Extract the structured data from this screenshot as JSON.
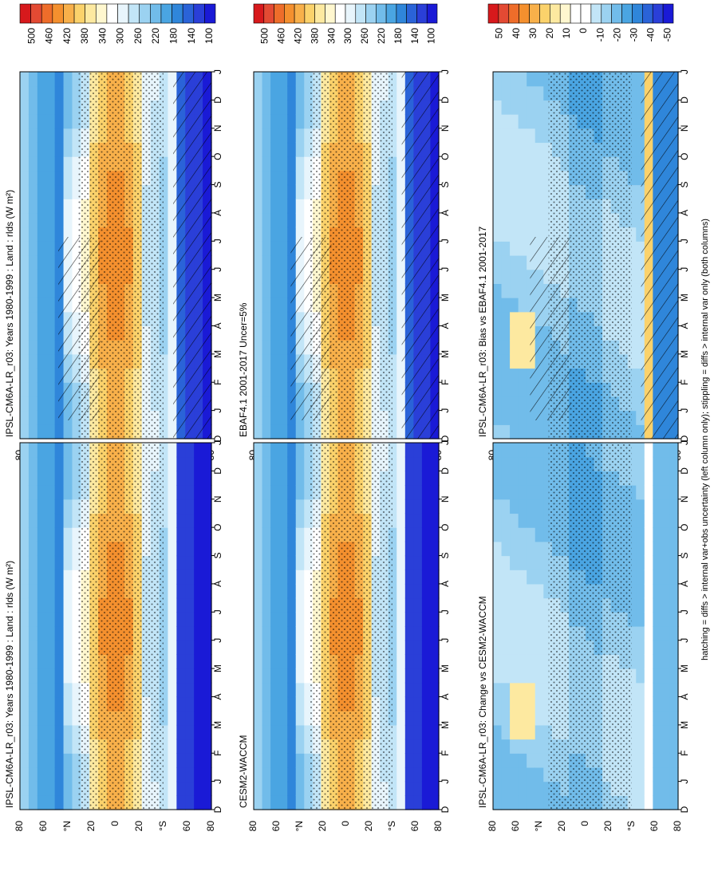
{
  "figure": {
    "footnote": "hatching = diffs > internal var+obs uncertainty (left column only); stippling = diffs > internal var only (both columns)"
  },
  "colors": {
    "absolute_scale": [
      "#d7191c",
      "#e34a33",
      "#ee6d2a",
      "#f4902e",
      "#f8b04a",
      "#fbd26b",
      "#fde9a0",
      "#fff7cf",
      "#ffffff",
      "#e8f5fc",
      "#c2e5f7",
      "#9bd2f1",
      "#71bcea",
      "#4aa5e2",
      "#2f86da",
      "#2a63d8",
      "#2a3fd8",
      "#1a1ad6"
    ],
    "difference_scale": [
      "#d7191c",
      "#e34a33",
      "#ee6d2a",
      "#f4902e",
      "#f8b04a",
      "#fbd26b",
      "#fde9a0",
      "#fff7cf",
      "#ffffff",
      "#ffffff",
      "#c2e5f7",
      "#9bd2f1",
      "#71bcea",
      "#4aa5e2",
      "#2f86da",
      "#2a63d8",
      "#2a3fd8",
      "#1a1ad6"
    ],
    "stipple": "#000000"
  },
  "chart_data": [
    {
      "type": "heatmap",
      "title": "IPSL-CM6A-LR_r03: Years 1980-1999 : Land : rlds (W m²)",
      "x_tick_labels": [
        "D",
        "J",
        "F",
        "M",
        "A",
        "M",
        "J",
        "J",
        "A",
        "S",
        "O",
        "N",
        "D",
        "J"
      ],
      "y_tick_labels": [
        "80",
        "60",
        "°N",
        "20",
        "0",
        "20",
        "°S",
        "60",
        "80"
      ],
      "colorbar_labels": [
        "500",
        "460",
        "420",
        "380",
        "340",
        "300",
        "260",
        "220",
        "180",
        "140",
        "100"
      ],
      "hatching": true,
      "stippling": true
    },
    {
      "type": "heatmap",
      "title": "IPSL-CM6A-LR_r03: Years 1980-1999 : Land : rlds (W m²)",
      "x_tick_labels": [
        "D",
        "J",
        "F",
        "M",
        "A",
        "M",
        "J",
        "J",
        "A",
        "S",
        "O",
        "N",
        "D",
        "J"
      ],
      "y_tick_labels": [
        "80",
        "60",
        "°N",
        "20",
        "0",
        "20",
        "°S",
        "60",
        "80"
      ],
      "colorbar_labels": [
        "500",
        "460",
        "420",
        "380",
        "340",
        "300",
        "260",
        "220",
        "180",
        "140",
        "100"
      ],
      "hatching": false,
      "stippling": true
    },
    {
      "type": "heatmap",
      "title": "EBAF4.1 2001-2017 Uncer=5%",
      "x_tick_labels": [
        "D",
        "J",
        "F",
        "M",
        "A",
        "M",
        "J",
        "J",
        "A",
        "S",
        "O",
        "N",
        "D",
        "J"
      ],
      "y_tick_labels": [
        "80",
        "60",
        "°N",
        "20",
        "0",
        "20",
        "°S",
        "60",
        "80"
      ],
      "colorbar_labels": [
        "500",
        "460",
        "420",
        "380",
        "340",
        "300",
        "260",
        "220",
        "180",
        "140",
        "100"
      ],
      "hatching": true,
      "stippling": true
    },
    {
      "type": "heatmap",
      "title": "CESM2-WACCM",
      "x_tick_labels": [
        "D",
        "J",
        "F",
        "M",
        "A",
        "M",
        "J",
        "J",
        "A",
        "S",
        "O",
        "N",
        "D",
        "J"
      ],
      "y_tick_labels": [
        "80",
        "60",
        "°N",
        "20",
        "0",
        "20",
        "°S",
        "60",
        "80"
      ],
      "colorbar_labels": [
        "500",
        "460",
        "420",
        "380",
        "340",
        "300",
        "260",
        "220",
        "180",
        "140",
        "100"
      ],
      "hatching": false,
      "stippling": true
    },
    {
      "type": "heatmap",
      "title": "IPSL-CM6A-LR_r03: Bias vs EBAF4.1 2001-2017",
      "x_tick_labels": [
        "D",
        "J",
        "F",
        "M",
        "A",
        "M",
        "J",
        "J",
        "A",
        "S",
        "O",
        "N",
        "D",
        "J"
      ],
      "y_tick_labels": [
        "80",
        "60",
        "°N",
        "20",
        "0",
        "20",
        "°S",
        "60",
        "80"
      ],
      "colorbar_labels": [
        "50",
        "40",
        "30",
        "20",
        "10",
        "0",
        "-10",
        "-20",
        "-30",
        "-40",
        "-50"
      ],
      "hatching": true,
      "stippling": true
    },
    {
      "type": "heatmap",
      "title": "IPSL-CM6A-LR_r03: Change vs CESM2-WACCM",
      "x_tick_labels": [
        "D",
        "J",
        "F",
        "M",
        "A",
        "M",
        "J",
        "J",
        "A",
        "S",
        "O",
        "N",
        "D",
        "J"
      ],
      "y_tick_labels": [
        "80",
        "60",
        "°N",
        "20",
        "0",
        "20",
        "°S",
        "60",
        "80"
      ],
      "colorbar_labels": [
        "50",
        "40",
        "30",
        "20",
        "10",
        "0",
        "-10",
        "-20",
        "-30",
        "-40",
        "-50"
      ],
      "hatching": false,
      "stippling": true
    }
  ]
}
